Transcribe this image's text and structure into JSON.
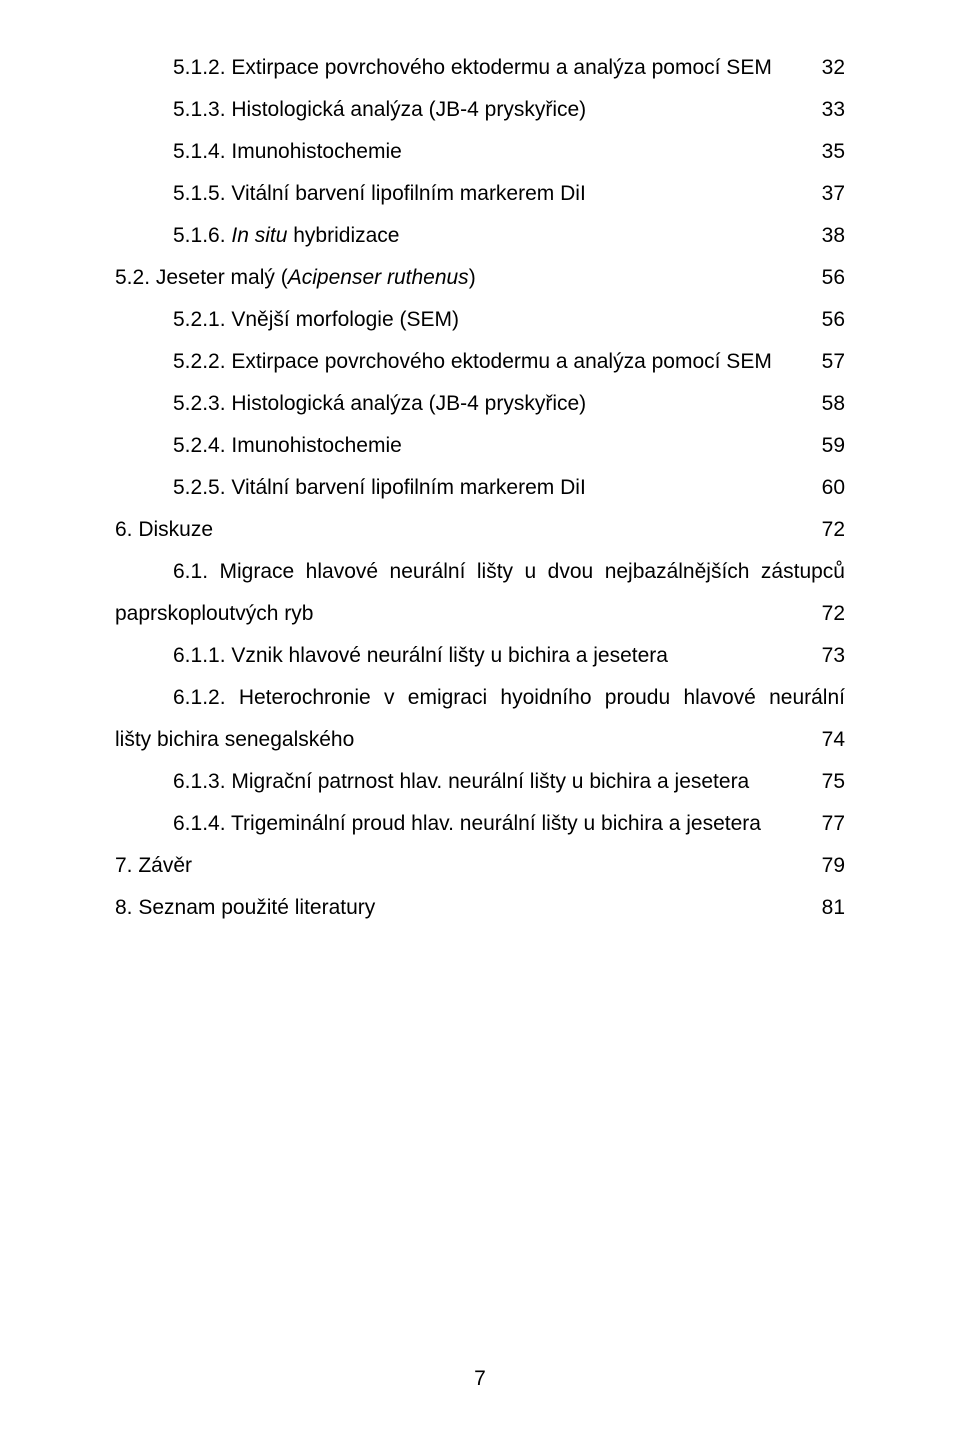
{
  "toc": {
    "i0": {
      "label": "5.1.2. Extirpace povrchového ektodermu a analýza pomocí SEM",
      "page": "32"
    },
    "i1": {
      "label": "5.1.3. Histologická analýza (JB-4 pryskyřice)",
      "page": "33"
    },
    "i2": {
      "label": "5.1.4. Imunohistochemie",
      "page": "35"
    },
    "i3": {
      "label": "5.1.5. Vitální barvení lipofilním markerem DiI",
      "page": "37"
    },
    "i4": {
      "prefix": "5.1.6. ",
      "italic": "In situ",
      "suffix": " hybridizace",
      "page": "38"
    },
    "i5": {
      "prefix": "5.2. Jeseter malý (",
      "italic": "Acipenser ruthenus",
      "suffix": ")",
      "page": "56"
    },
    "i6": {
      "label": "5.2.1. Vnější morfologie (SEM)",
      "page": "56"
    },
    "i7": {
      "label": "5.2.2. Extirpace povrchového ektodermu a analýza pomocí SEM",
      "page": "57"
    },
    "i8": {
      "label": "5.2.3. Histologická analýza (JB-4 pryskyřice)",
      "page": "58"
    },
    "i9": {
      "label": "5.2.4. Imunohistochemie",
      "page": "59"
    },
    "i10": {
      "label": "5.2.5. Vitální barvení lipofilním markerem DiI",
      "page": "60"
    },
    "i11": {
      "label": "6. Diskuze",
      "page": "72"
    },
    "i12a": "6.1. Migrace hlavové neurální lišty u dvou nejbazálnějších zástupců",
    "i12b": {
      "label": "paprskoploutvých ryb",
      "page": "72"
    },
    "i13": {
      "label": "6.1.1. Vznik hlavové neurální lišty u bichira a jesetera",
      "page": "73"
    },
    "i14a": "6.1.2. Heterochronie v emigraci hyoidního proudu hlavové neurální",
    "i14b": {
      "label": "lišty bichira senegalského",
      "page": "74"
    },
    "i15": {
      "label": "6.1.3. Migrační patrnost hlav. neurální lišty u bichira a jesetera",
      "page": "75"
    },
    "i16": {
      "label": "6.1.4. Trigeminální proud hlav. neurální lišty u bichira a jesetera",
      "page": "77"
    },
    "i17": {
      "label": "7. Závěr",
      "page": "79"
    },
    "i18": {
      "label": "8. Seznam použité literatury",
      "page": "81"
    }
  },
  "pagenum": "7"
}
